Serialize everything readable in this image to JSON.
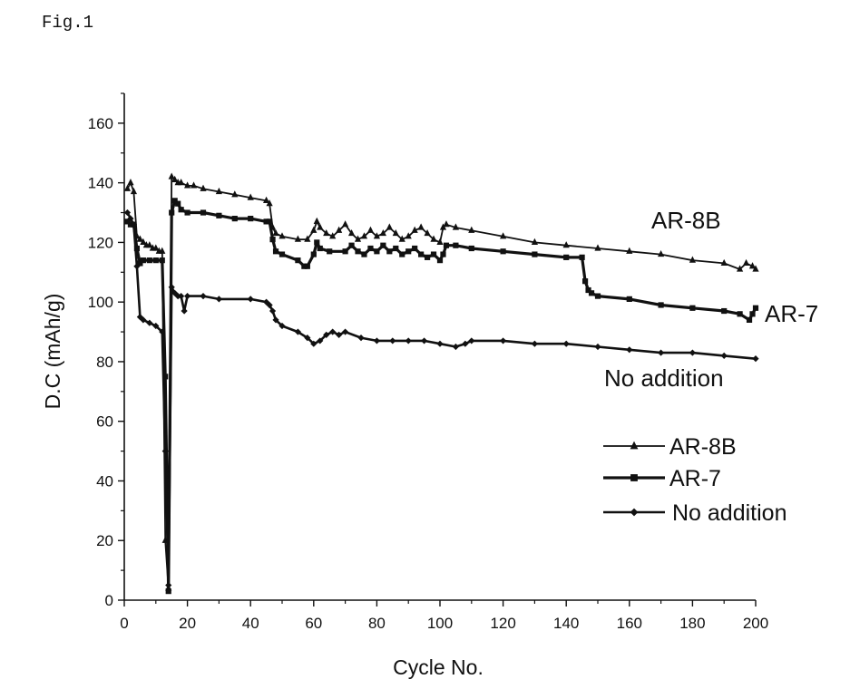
{
  "figure_label": "Fig.1",
  "chart_data": {
    "type": "line",
    "title": "",
    "xlabel": "Cycle No.",
    "ylabel": "D.C (mAh/g)",
    "xlim": [
      0,
      200
    ],
    "ylim": [
      0,
      170
    ],
    "xticks": [
      0,
      20,
      40,
      60,
      80,
      100,
      120,
      140,
      160,
      180,
      200
    ],
    "yticks": [
      0,
      20,
      40,
      60,
      80,
      100,
      120,
      140,
      160
    ],
    "grid": false,
    "legend_position": "right",
    "series": [
      {
        "name": "AR-8B",
        "marker": "triangle",
        "end_label": "AR-8B",
        "points": [
          [
            1,
            138
          ],
          [
            2,
            140
          ],
          [
            3,
            137
          ],
          [
            4,
            122
          ],
          [
            5,
            121
          ],
          [
            6,
            120
          ],
          [
            7,
            119
          ],
          [
            8,
            119
          ],
          [
            9,
            118
          ],
          [
            10,
            118
          ],
          [
            11,
            117
          ],
          [
            12,
            117
          ],
          [
            13,
            20
          ],
          [
            14,
            4
          ],
          [
            15,
            142
          ],
          [
            16,
            141
          ],
          [
            17,
            140
          ],
          [
            18,
            140
          ],
          [
            20,
            139
          ],
          [
            22,
            139
          ],
          [
            25,
            138
          ],
          [
            30,
            137
          ],
          [
            35,
            136
          ],
          [
            40,
            135
          ],
          [
            45,
            134
          ],
          [
            46,
            133
          ],
          [
            47,
            125
          ],
          [
            48,
            123
          ],
          [
            50,
            122
          ],
          [
            55,
            121
          ],
          [
            58,
            121
          ],
          [
            60,
            124
          ],
          [
            61,
            127
          ],
          [
            62,
            125
          ],
          [
            64,
            123
          ],
          [
            66,
            122
          ],
          [
            68,
            124
          ],
          [
            70,
            126
          ],
          [
            72,
            123
          ],
          [
            74,
            121
          ],
          [
            76,
            122
          ],
          [
            78,
            124
          ],
          [
            80,
            122
          ],
          [
            82,
            123
          ],
          [
            84,
            125
          ],
          [
            86,
            123
          ],
          [
            88,
            121
          ],
          [
            90,
            122
          ],
          [
            92,
            124
          ],
          [
            94,
            125
          ],
          [
            96,
            123
          ],
          [
            98,
            121
          ],
          [
            100,
            120
          ],
          [
            101,
            125
          ],
          [
            102,
            126
          ],
          [
            105,
            125
          ],
          [
            110,
            124
          ],
          [
            120,
            122
          ],
          [
            130,
            120
          ],
          [
            140,
            119
          ],
          [
            150,
            118
          ],
          [
            160,
            117
          ],
          [
            170,
            116
          ],
          [
            180,
            114
          ],
          [
            190,
            113
          ],
          [
            195,
            111
          ],
          [
            197,
            113
          ],
          [
            199,
            112
          ],
          [
            200,
            111
          ]
        ]
      },
      {
        "name": "AR-7",
        "marker": "square",
        "end_label": "AR-7",
        "points": [
          [
            1,
            127
          ],
          [
            2,
            126
          ],
          [
            3,
            126
          ],
          [
            4,
            118
          ],
          [
            5,
            113
          ],
          [
            6,
            114
          ],
          [
            8,
            114
          ],
          [
            10,
            114
          ],
          [
            12,
            114
          ],
          [
            13,
            75
          ],
          [
            14,
            3
          ],
          [
            15,
            130
          ],
          [
            16,
            134
          ],
          [
            17,
            133
          ],
          [
            18,
            131
          ],
          [
            20,
            130
          ],
          [
            25,
            130
          ],
          [
            30,
            129
          ],
          [
            35,
            128
          ],
          [
            40,
            128
          ],
          [
            45,
            127
          ],
          [
            46,
            127
          ],
          [
            47,
            121
          ],
          [
            48,
            117
          ],
          [
            50,
            116
          ],
          [
            55,
            114
          ],
          [
            57,
            112
          ],
          [
            58,
            112
          ],
          [
            60,
            116
          ],
          [
            61,
            120
          ],
          [
            62,
            118
          ],
          [
            65,
            117
          ],
          [
            70,
            117
          ],
          [
            72,
            119
          ],
          [
            74,
            117
          ],
          [
            76,
            116
          ],
          [
            78,
            118
          ],
          [
            80,
            117
          ],
          [
            82,
            119
          ],
          [
            84,
            117
          ],
          [
            86,
            118
          ],
          [
            88,
            116
          ],
          [
            90,
            117
          ],
          [
            92,
            118
          ],
          [
            94,
            116
          ],
          [
            96,
            115
          ],
          [
            98,
            116
          ],
          [
            100,
            114
          ],
          [
            101,
            116
          ],
          [
            102,
            119
          ],
          [
            105,
            119
          ],
          [
            110,
            118
          ],
          [
            120,
            117
          ],
          [
            130,
            116
          ],
          [
            140,
            115
          ],
          [
            145,
            115
          ],
          [
            146,
            107
          ],
          [
            147,
            104
          ],
          [
            148,
            103
          ],
          [
            150,
            102
          ],
          [
            160,
            101
          ],
          [
            170,
            99
          ],
          [
            180,
            98
          ],
          [
            190,
            97
          ],
          [
            195,
            96
          ],
          [
            198,
            94
          ],
          [
            199,
            96
          ],
          [
            200,
            98
          ]
        ]
      },
      {
        "name": "No addition",
        "marker": "diamond",
        "end_label": "No addition",
        "points": [
          [
            1,
            130
          ],
          [
            2,
            128
          ],
          [
            3,
            126
          ],
          [
            4,
            112
          ],
          [
            5,
            95
          ],
          [
            6,
            94
          ],
          [
            8,
            93
          ],
          [
            10,
            92
          ],
          [
            12,
            90
          ],
          [
            13,
            50
          ],
          [
            14,
            5
          ],
          [
            15,
            105
          ],
          [
            16,
            103
          ],
          [
            17,
            102
          ],
          [
            18,
            102
          ],
          [
            19,
            97
          ],
          [
            20,
            102
          ],
          [
            25,
            102
          ],
          [
            30,
            101
          ],
          [
            40,
            101
          ],
          [
            45,
            100
          ],
          [
            46,
            99
          ],
          [
            47,
            97
          ],
          [
            48,
            94
          ],
          [
            50,
            92
          ],
          [
            55,
            90
          ],
          [
            58,
            88
          ],
          [
            60,
            86
          ],
          [
            62,
            87
          ],
          [
            64,
            89
          ],
          [
            66,
            90
          ],
          [
            68,
            89
          ],
          [
            70,
            90
          ],
          [
            75,
            88
          ],
          [
            80,
            87
          ],
          [
            85,
            87
          ],
          [
            90,
            87
          ],
          [
            95,
            87
          ],
          [
            100,
            86
          ],
          [
            105,
            85
          ],
          [
            108,
            86
          ],
          [
            110,
            87
          ],
          [
            120,
            87
          ],
          [
            130,
            86
          ],
          [
            140,
            86
          ],
          [
            150,
            85
          ],
          [
            160,
            84
          ],
          [
            170,
            83
          ],
          [
            180,
            83
          ],
          [
            190,
            82
          ],
          [
            200,
            81
          ]
        ]
      }
    ]
  }
}
